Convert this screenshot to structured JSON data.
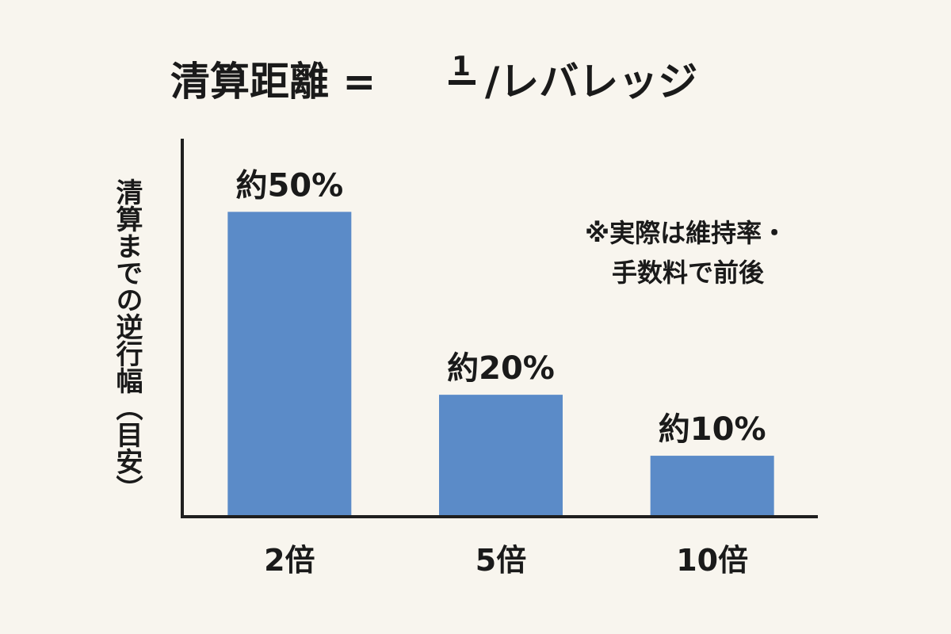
{
  "title": {
    "left": "清算距離 =",
    "numerator": "1",
    "right": "/レバレッジ"
  },
  "note": {
    "line1": "※実際は維持率・",
    "line2": "手数料で前後"
  },
  "colors": {
    "bar": "#5b8bc8",
    "axis": "#1f1f1f",
    "background": "#f8f5ee"
  },
  "chart_data": {
    "type": "bar",
    "title": "清算距離 = 1/レバレッジ",
    "ylabel": "清算までの逆行幅（目安）",
    "xlabel": "",
    "categories": [
      "2倍",
      "5倍",
      "10倍"
    ],
    "values": [
      50,
      20,
      10
    ],
    "data_labels": [
      "約50%",
      "約20%",
      "約10%"
    ],
    "ylim": [
      0,
      62
    ],
    "grid": false
  }
}
